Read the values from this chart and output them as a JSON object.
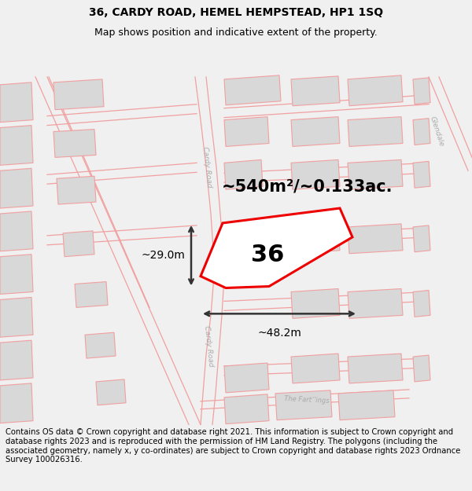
{
  "title": "36, CARDY ROAD, HEMEL HEMPSTEAD, HP1 1SQ",
  "subtitle": "Map shows position and indicative extent of the property.",
  "footer": "Contains OS data © Crown copyright and database right 2021. This information is subject to Crown copyright and database rights 2023 and is reproduced with the permission of HM Land Registry. The polygons (including the associated geometry, namely x, y co-ordinates) are subject to Crown copyright and database rights 2023 Ordnance Survey 100026316.",
  "area_label": "~540m²/~0.133ac.",
  "number_label": "36",
  "dim_width": "~48.2m",
  "dim_height": "~29.0m",
  "road_label_upper": "Cardy Road",
  "road_label_lower": "Cardy Road",
  "road_label_bottom": "The Fart’’ings",
  "road_label_right": "Glendale",
  "bg_color": "#f0f0f0",
  "map_bg": "#ffffff",
  "outline_color": "#f0a0a0",
  "highlight_color": "#ee0000",
  "building_fill": "#d8d8d8",
  "building_edge": "#c8c8c8",
  "road_label_color": "#aaaaaa",
  "dim_color": "#333333",
  "title_fontsize": 10,
  "subtitle_fontsize": 9,
  "footer_fontsize": 7.2,
  "area_fontsize": 15,
  "number_fontsize": 22,
  "dim_fontsize": 10
}
